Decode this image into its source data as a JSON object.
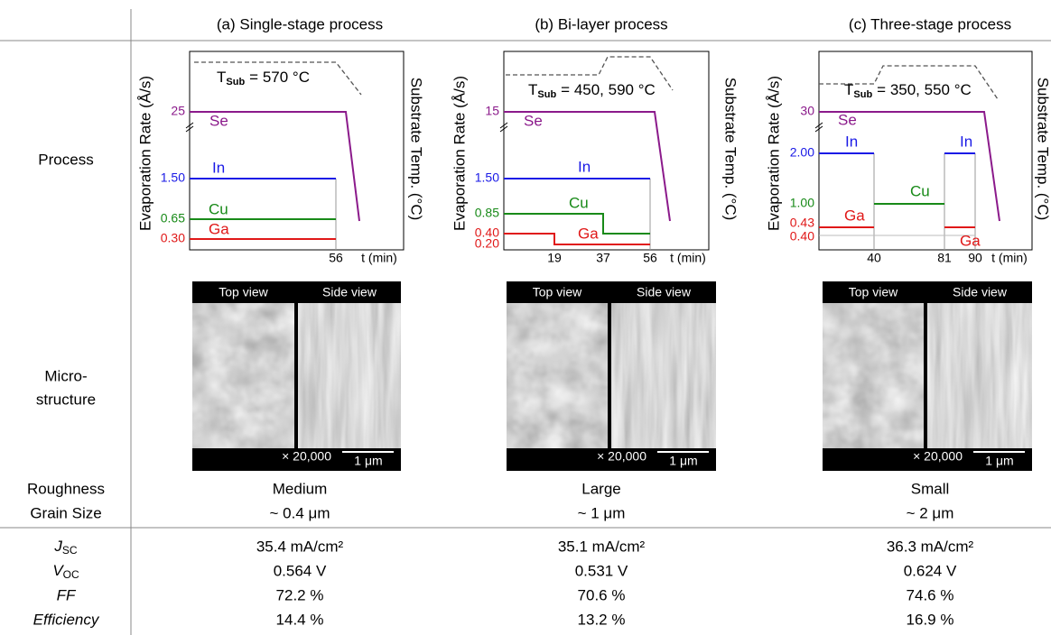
{
  "header": {
    "columns": [
      "(a) Single-stage process",
      "(b) Bi-layer process",
      "(c) Three-stage process"
    ]
  },
  "row_labels": {
    "process": "Process",
    "microstructure": [
      "Micro-",
      "structure"
    ],
    "roughness": "Roughness",
    "grain_size": "Grain Size",
    "jsc": {
      "main": "J",
      "sub": "SC"
    },
    "voc": {
      "main": "V",
      "sub": "OC"
    },
    "ff": "FF",
    "efficiency": "Efficiency"
  },
  "process": [
    {
      "y_label": "Evaporation Rate (Å/s)",
      "y2_label": "Substrate Temp. (°C)",
      "x_label": "t (min)",
      "tsub": {
        "main": "T",
        "sub": "Sub",
        "rest": "= 570 °C"
      },
      "levels": [
        {
          "name": "Se",
          "value": "25"
        },
        {
          "name": "In",
          "value": "1.50"
        },
        {
          "name": "Cu",
          "value": "0.65"
        },
        {
          "name": "Ga",
          "value": "0.30"
        }
      ],
      "extra_ticks": [],
      "x_ticks": [
        "56"
      ]
    },
    {
      "y_label": "Evaporation Rate (Å/s)",
      "y2_label": "Substrate Temp. (°C)",
      "x_label": "t (min)",
      "tsub": {
        "main": "T",
        "sub": "Sub",
        "rest": "= 450, 590 °C"
      },
      "levels": [
        {
          "name": "Se",
          "value": "15"
        },
        {
          "name": "In",
          "value": "1.50"
        },
        {
          "name": "Cu",
          "value": "0.85"
        },
        {
          "name": "Ga",
          "value": "0.40"
        }
      ],
      "extra_ticks": [
        "0.20"
      ],
      "x_ticks": [
        "19",
        "37",
        "56"
      ]
    },
    {
      "y_label": "Evaporation Rate (Å/s)",
      "y2_label": "Substrate Temp. (°C)",
      "x_label": "t (min)",
      "tsub": {
        "main": "T",
        "sub": "Sub",
        "rest": "= 350, 550 °C"
      },
      "levels": [
        {
          "name": "Se",
          "value": "30"
        },
        {
          "name": "In",
          "value": "2.00"
        },
        {
          "name": "Cu",
          "value": "1.00"
        },
        {
          "name": "Ga",
          "value": "0.43"
        }
      ],
      "extra_ticks": [
        "0.40"
      ],
      "x_ticks": [
        "40",
        "81",
        "90"
      ]
    }
  ],
  "sem": [
    {
      "top": "Top view",
      "side": "Side view",
      "mag": "× 20,000",
      "scale": "1 μm"
    },
    {
      "top": "Top view",
      "side": "Side view",
      "mag": "× 20,000",
      "scale": "1 μm"
    },
    {
      "top": "Top view",
      "side": "Side view",
      "mag": "× 20,000",
      "scale": "1 μm"
    }
  ],
  "roughness": [
    "Medium",
    "Large",
    "Small"
  ],
  "grain_size": [
    "~ 0.4 μm",
    "~ 1 μm",
    "~ 2 μm"
  ],
  "jsc": [
    "35.4 mA/cm²",
    "35.1 mA/cm²",
    "36.3 mA/cm²"
  ],
  "voc": [
    "0.564 V",
    "0.531 V",
    "0.624 V"
  ],
  "ff": [
    "72.2 %",
    "70.6 %",
    "74.6 %"
  ],
  "efficiency": [
    "14.4 %",
    "13.2 %",
    "16.9 %"
  ]
}
